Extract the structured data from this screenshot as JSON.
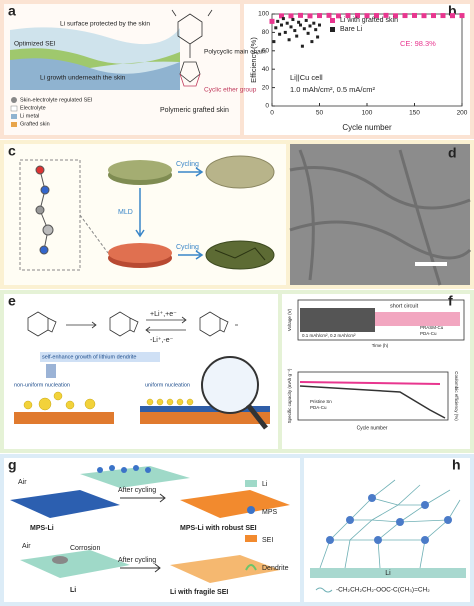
{
  "panels": {
    "a": {
      "label": "a",
      "top_text": "Li surface protected by the skin",
      "sei": "Optimized SEI",
      "bottom_text": "Li growth underneath the skin",
      "legend": [
        "Skin-electrolyte regulated SEI",
        "Electrolyte",
        "Li metal",
        "Grafted skin"
      ],
      "main_chain": "Polycyclic main chain",
      "ether": "Cyclic ether group",
      "caption": "Polymeric grafted skin"
    },
    "b": {
      "label": "b",
      "chart": {
        "type": "scatter",
        "x_label": "Cycle number",
        "y_label": "Efficiency (%)",
        "xlim": [
          0,
          200
        ],
        "xticks": [
          0,
          50,
          100,
          150,
          200
        ],
        "ylim": [
          0,
          100
        ],
        "yticks": [
          0,
          20,
          40,
          60,
          80,
          100
        ],
        "series": [
          {
            "name": "Li with grafted skin",
            "color": "#e8368f",
            "x": [
              0,
              10,
              20,
              30,
              40,
              50,
              60,
              70,
              80,
              90,
              100,
              110,
              120,
              130,
              140,
              150,
              160,
              170,
              180,
              190,
              200
            ],
            "values": [
              92,
              98,
              98,
              98.5,
              98,
              98.3,
              98.5,
              98,
              98.3,
              98.4,
              98.2,
              98.3,
              98.5,
              98.1,
              98.3,
              98.4,
              98.2,
              98.3,
              98.3,
              98.2,
              98.3
            ]
          },
          {
            "name": "Bare Li",
            "color": "#222222",
            "x": [
              2,
              4,
              6,
              8,
              10,
              12,
              14,
              16,
              18,
              20,
              22,
              24,
              26,
              28,
              30,
              32,
              34,
              36,
              38,
              40,
              42,
              44,
              46,
              48,
              50
            ],
            "values": [
              70,
              85,
              92,
              78,
              88,
              95,
              80,
              90,
              72,
              86,
              94,
              82,
              76,
              91,
              88,
              65,
              84,
              93,
              79,
              87,
              70,
              90,
              83,
              75,
              88
            ]
          }
        ],
        "annotation": "CE: 98.3%",
        "cell": "Li||Cu cell",
        "condition": "1.0 mAh/cm², 0.5 mA/cm²"
      }
    },
    "c": {
      "label": "c",
      "cycling_top": "Cycling",
      "mld": "MLD",
      "cycling_bottom": "Cycling"
    },
    "d": {
      "label": "d"
    },
    "e": {
      "label": "e",
      "forward": "+Li⁺,+e⁻",
      "backward": "-Li⁺,-e⁻",
      "dendrite": "self-enhance growth of lithium dendrite",
      "non_uniform": "non-uniform nucleation",
      "uniform": "uniform nucleation"
    },
    "f": {
      "label": "f",
      "short_circuit": "short circuit",
      "condition": "0.1 mAh/cm², 0.2 mAh/cm²",
      "top_legend": [
        "PRASM-Cu",
        "PDA-Cu"
      ],
      "top_y": "Voltage (V)",
      "top_x": "Time (h)",
      "bottom_y": "Specific capacity (mAh g⁻¹)",
      "bottom_y2": "Coulombic efficiency (%)",
      "bottom_x": "Cycle number",
      "bottom_legend": [
        "Pristine Sn",
        "PDA-Cu"
      ]
    },
    "g": {
      "label": "g",
      "air_top": "Air",
      "mps_li": "MPS-Li",
      "after_top": "After cycling",
      "robust": "MPS-Li with robust SEI",
      "legend": [
        "Li",
        "MPS",
        "SEI",
        "Dendrite"
      ],
      "air_bottom": "Air",
      "corrosion": "Corrosion",
      "li": "Li",
      "after_bottom": "After cycling",
      "fragile": "Li with fragile SEI"
    },
    "h": {
      "label": "h",
      "li": "Li",
      "formula": "-CH₂CH₂CH₂-OOC-C(CH₃)=CH₂"
    }
  }
}
